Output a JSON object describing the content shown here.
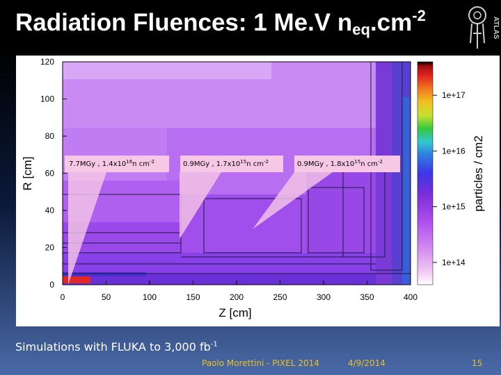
{
  "slide": {
    "title_main": "Radiation Fluences: 1 Me.V n",
    "title_sub": "eq",
    "title_mid": ".cm",
    "title_sup": "-2",
    "logo_text": "ATLAS"
  },
  "chart_data": {
    "type": "heatmap",
    "xlabel": "Z [cm]",
    "ylabel": "R [cm]",
    "x_ticks": [
      "0",
      "50",
      "100",
      "150",
      "200",
      "250",
      "300",
      "350",
      "400"
    ],
    "y_ticks": [
      "0",
      "20",
      "40",
      "60",
      "80",
      "100",
      "120"
    ],
    "xlim": [
      0,
      400
    ],
    "ylim": [
      0,
      120
    ],
    "colorbar_label": "particles / cm2",
    "colorbar_ticks": [
      "1e+14",
      "1e+15",
      "1e+16",
      "1e+17"
    ],
    "annotations": [
      {
        "text": "7.7MGy , 1.4x10",
        "exp": "16",
        "unit": "n cm",
        "unit_exp": "-2",
        "points_to": {
          "z": 5,
          "r": 3
        }
      },
      {
        "text": "0.9MGy , 1.7x10",
        "exp": "15",
        "unit": "n cm",
        "unit_exp": "-2",
        "points_to": {
          "z": 125,
          "r": 33
        }
      },
      {
        "text": "0.9MGy , 1.8x10",
        "exp": "15",
        "unit": "n cm",
        "unit_exp": "-2",
        "points_to": {
          "z": 250,
          "r": 33
        }
      }
    ]
  },
  "footer": {
    "simulation_text": "Simulations with FLUKA to 3,000 fb",
    "simulation_sup": "-1",
    "author_text": "Paolo Morettini  -  PIXEL 2014",
    "date_text": "4/9/2014",
    "page_number": "15"
  }
}
